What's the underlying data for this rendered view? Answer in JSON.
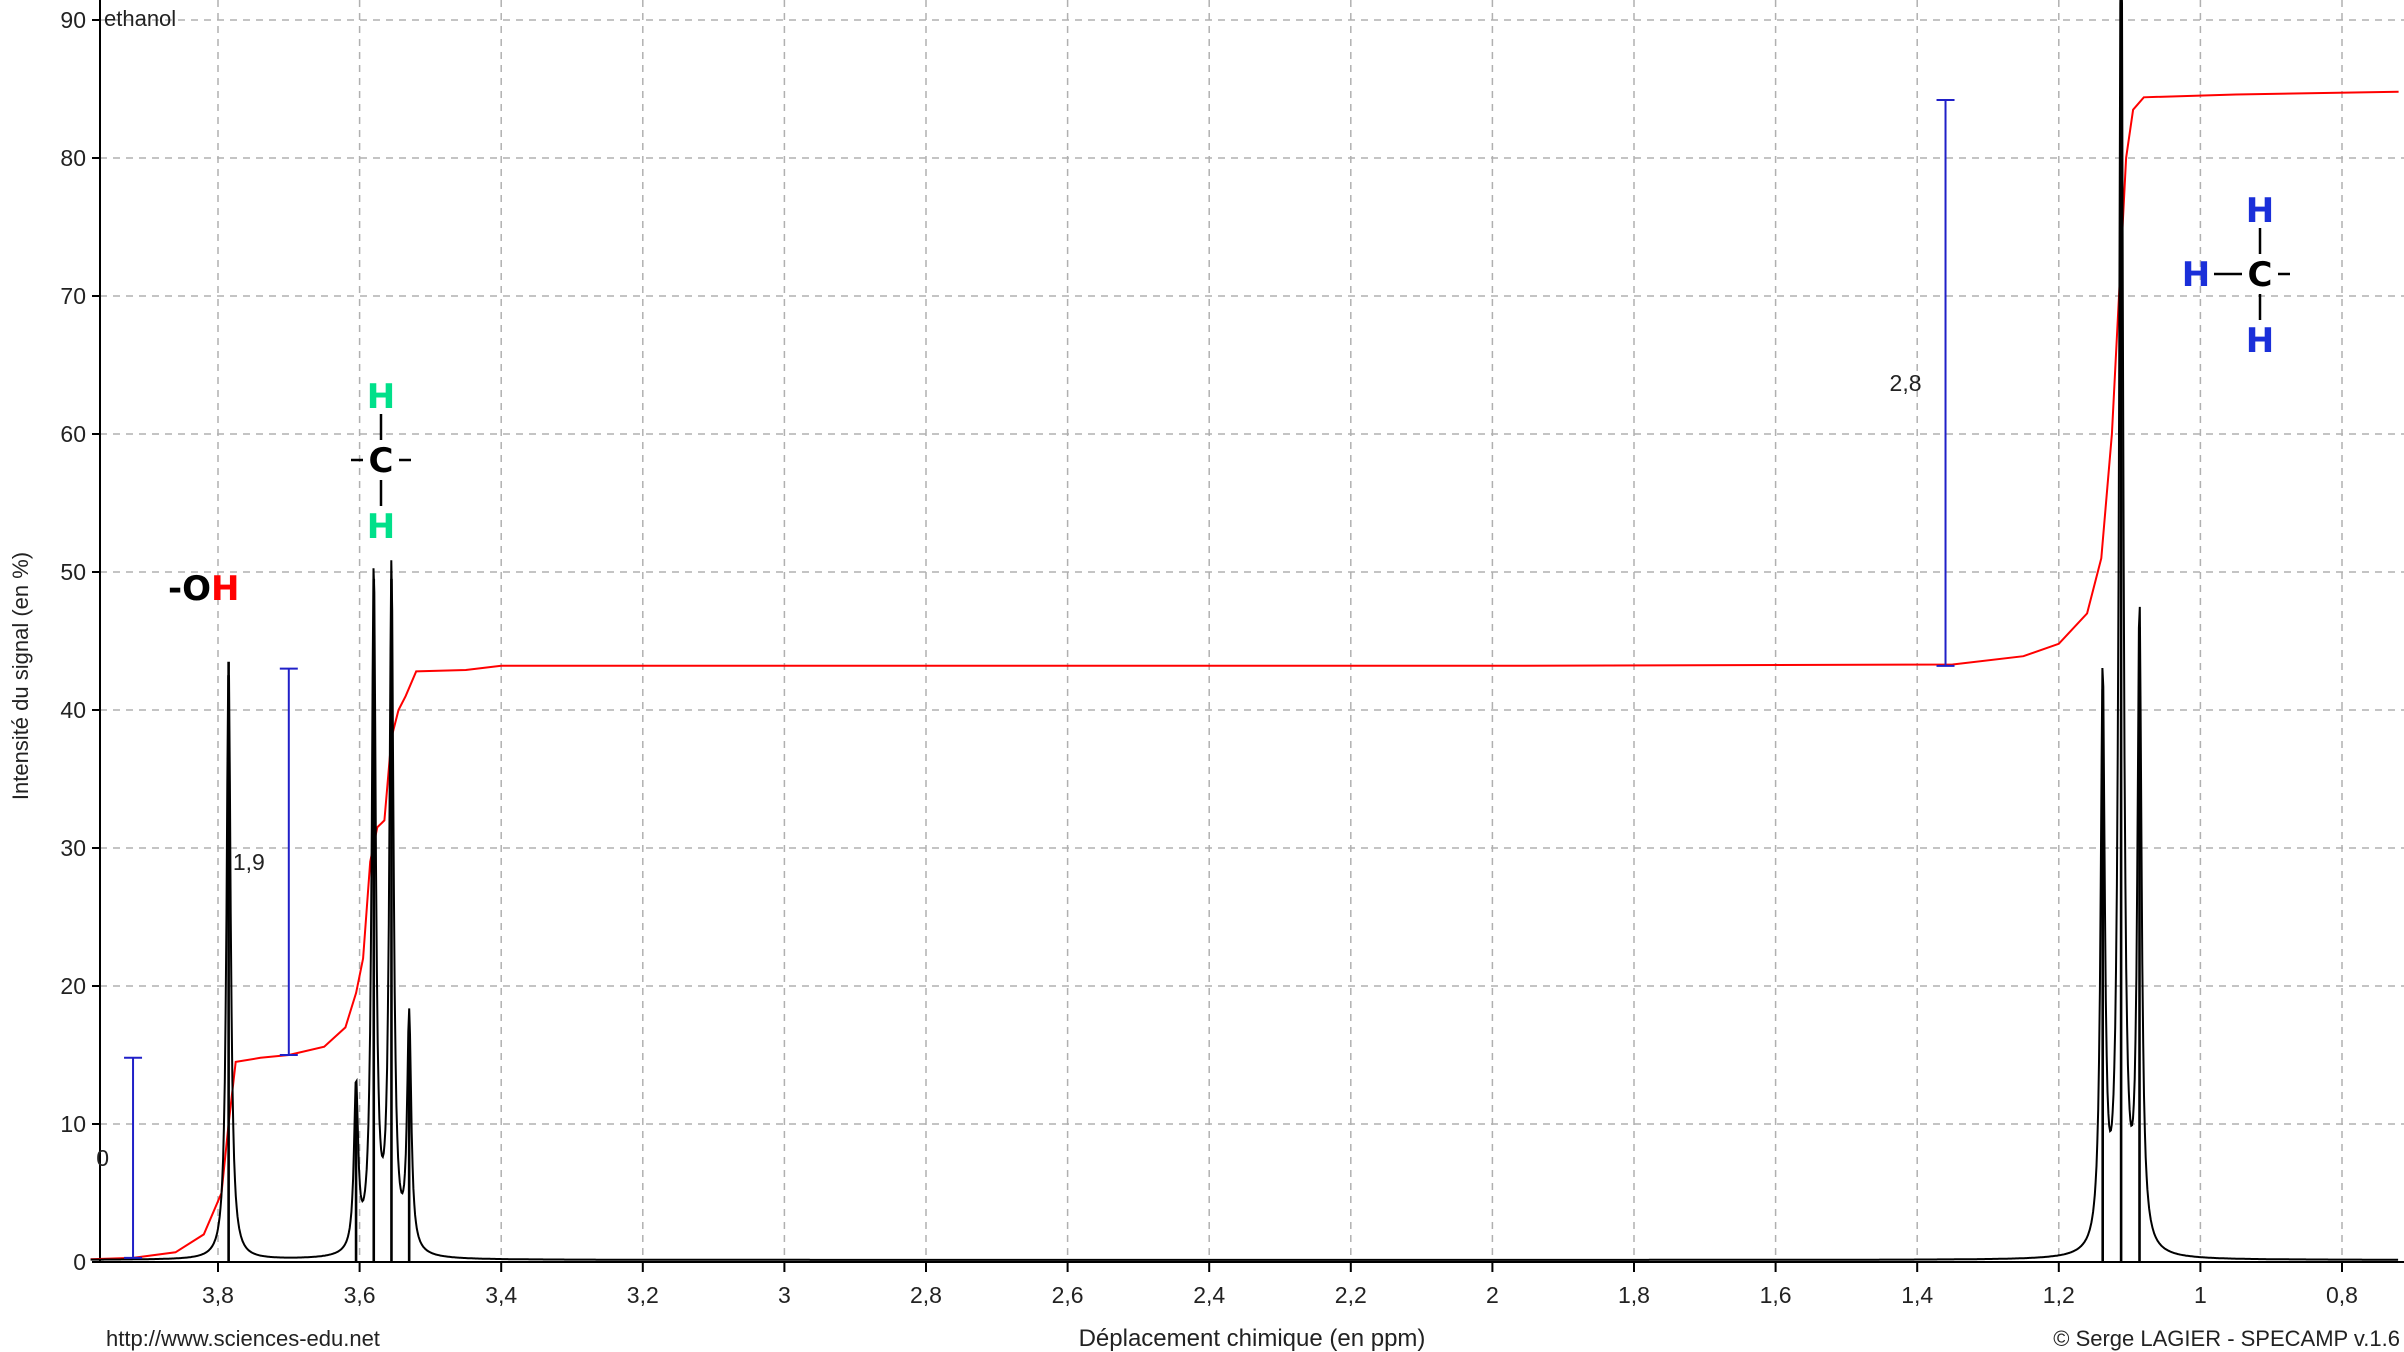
{
  "chart_data": {
    "type": "line",
    "title": "ethanol",
    "xlabel": "Déplacement chimique (en ppm)",
    "ylabel": "Intensité du signal (en %)",
    "xlim": [
      3.98,
      0.72
    ],
    "ylim": [
      0,
      90
    ],
    "x_reversed": true,
    "grid": true,
    "x_ticks": [
      3.8,
      3.6,
      3.4,
      3.2,
      3.0,
      2.8,
      2.6,
      2.4,
      2.2,
      2.0,
      1.8,
      1.6,
      1.4,
      1.2,
      1.0,
      0.8
    ],
    "x_tick_labels": [
      "3,8",
      "3,6",
      "3,4",
      "3,2",
      "3",
      "2,8",
      "2,6",
      "2,4",
      "2,2",
      "2",
      "1,8",
      "1,6",
      "1,4",
      "1,2",
      "1",
      "0,8"
    ],
    "y_ticks": [
      0,
      10,
      20,
      30,
      40,
      50,
      60,
      70,
      80,
      90
    ],
    "y_tick_labels": [
      "0",
      "10",
      "20",
      "30",
      "40",
      "50",
      "60",
      "70",
      "80",
      "90"
    ],
    "series": [
      {
        "color": "#000000",
        "peaks": [
          {
            "x": 3.785,
            "y": 43.5
          },
          {
            "x": 3.605,
            "y": 12
          },
          {
            "x": 3.58,
            "y": 49.5
          },
          {
            "x": 3.555,
            "y": 49.5
          },
          {
            "x": 3.53,
            "y": 17
          },
          {
            "x": 1.138,
            "y": 41.5
          },
          {
            "x": 1.112,
            "y": 100
          },
          {
            "x": 1.086,
            "y": 46
          }
        ]
      },
      {
        "color": "#ff0000",
        "points": [
          [
            3.98,
            0.2
          ],
          [
            3.92,
            0.3
          ],
          [
            3.86,
            0.7
          ],
          [
            3.82,
            2.0
          ],
          [
            3.795,
            5.0
          ],
          [
            3.785,
            10
          ],
          [
            3.775,
            14.5
          ],
          [
            3.74,
            14.8
          ],
          [
            3.7,
            15.0
          ],
          [
            3.65,
            15.6
          ],
          [
            3.62,
            17.0
          ],
          [
            3.605,
            19.5
          ],
          [
            3.595,
            22
          ],
          [
            3.585,
            29
          ],
          [
            3.575,
            31.5
          ],
          [
            3.565,
            32
          ],
          [
            3.555,
            38
          ],
          [
            3.545,
            40
          ],
          [
            3.535,
            41
          ],
          [
            3.52,
            42.8
          ],
          [
            3.45,
            42.9
          ],
          [
            3.4,
            43.2
          ],
          [
            2.0,
            43.2
          ],
          [
            1.35,
            43.3
          ],
          [
            1.25,
            43.9
          ],
          [
            1.2,
            44.8
          ],
          [
            1.16,
            47.0
          ],
          [
            1.14,
            51
          ],
          [
            1.125,
            60
          ],
          [
            1.115,
            70
          ],
          [
            1.105,
            80
          ],
          [
            1.095,
            83.5
          ],
          [
            1.08,
            84.4
          ],
          [
            0.95,
            84.6
          ],
          [
            0.72,
            84.8
          ]
        ]
      }
    ],
    "integration_marks": [
      {
        "x": 3.92,
        "y_low": 0.3,
        "y_high": 14.8,
        "label": "0"
      },
      {
        "x": 3.7,
        "y_low": 15.0,
        "y_high": 43.0,
        "label": "1,9"
      },
      {
        "x": 1.36,
        "y_low": 43.2,
        "y_high": 84.2,
        "label": "2,8"
      }
    ],
    "annotations": [
      {
        "molecule": "-OH",
        "parts": [
          {
            "text": "-",
            "color": "#000000"
          },
          {
            "text": "O",
            "color": "#000000"
          },
          {
            "text": "H",
            "color": "#ff0000"
          }
        ]
      },
      {
        "molecule": "CH2",
        "c": "C",
        "h": "H",
        "h_color": "#00e08a"
      },
      {
        "molecule": "CH3",
        "c": "C",
        "h": "H",
        "h_color": "#1a2fd9"
      }
    ],
    "colors": {
      "integration_curve": "#ff0000",
      "spectrum": "#000000",
      "integration_bars": "#2020c8",
      "grid": "#b0b0b0"
    }
  },
  "footer": {
    "left": "http://www.sciences-edu.net",
    "right": "© Serge LAGIER - SPECAMP v.1.6"
  }
}
